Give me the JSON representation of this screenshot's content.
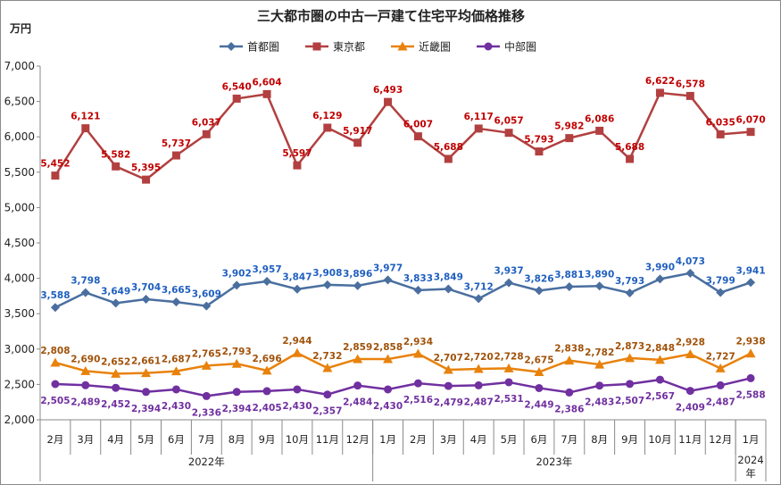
{
  "chart_data": {
    "type": "line",
    "title": "三大都市圏の中古一戸建て住宅平均価格推移",
    "yunit": "万円",
    "ylim": [
      2000,
      7000
    ],
    "ystep": 500,
    "yticks": [
      "2,000",
      "2,500",
      "3,000",
      "3,500",
      "4,000",
      "4,500",
      "5,000",
      "5,500",
      "6,000",
      "6,500",
      "7,000"
    ],
    "categories": [
      "2月",
      "3月",
      "4月",
      "5月",
      "6月",
      "7月",
      "8月",
      "9月",
      "10月",
      "11月",
      "12月",
      "1月",
      "2月",
      "3月",
      "4月",
      "5月",
      "6月",
      "7月",
      "8月",
      "9月",
      "10月",
      "11月",
      "12月",
      "1月"
    ],
    "years": [
      {
        "label": "2022年",
        "from": 0,
        "to": 10
      },
      {
        "label": "2023年",
        "from": 11,
        "to": 22
      },
      {
        "label": "2024年",
        "from": 23,
        "to": 23
      }
    ],
    "legend_position": "top",
    "grid": false,
    "series": [
      {
        "name": "首都圏",
        "color": "#4a6f9f",
        "label_color": "#1f5fbf",
        "marker": "diamond",
        "values": [
          3588,
          3798,
          3649,
          3704,
          3665,
          3609,
          3902,
          3957,
          3847,
          3908,
          3896,
          3977,
          3833,
          3849,
          3712,
          3937,
          3826,
          3881,
          3890,
          3793,
          3990,
          4073,
          3799,
          3941
        ],
        "labels": [
          "3,588",
          "3,798",
          "3,649",
          "3,704",
          "3,665",
          "3,609",
          "3,902",
          "3,957",
          "3,847",
          "3,908",
          "3,896",
          "3,977",
          "3,833",
          "3,849",
          "3,712",
          "3,937",
          "3,826",
          "3,881",
          "3,890",
          "3,793",
          "3,990",
          "4,073",
          "3,799",
          "3,941"
        ]
      },
      {
        "name": "東京都",
        "color": "#b24040",
        "label_color": "#c00000",
        "marker": "square",
        "values": [
          5452,
          6121,
          5582,
          5395,
          5737,
          6037,
          6540,
          6604,
          5597,
          6129,
          5917,
          6493,
          6007,
          5688,
          6117,
          6057,
          5793,
          5982,
          6086,
          5688,
          6622,
          6578,
          6035,
          6070
        ],
        "labels": [
          "5,452",
          "6,121",
          "5,582",
          "5,395",
          "5,737",
          "6,037",
          "6,540",
          "6,604",
          "5,597",
          "6,129",
          "5,917",
          "6,493",
          "6,007",
          "5,688",
          "6,117",
          "6,057",
          "5,793",
          "5,982",
          "6,086",
          "5,688",
          "6,622",
          "6,578",
          "6,035",
          "6,070"
        ]
      },
      {
        "name": "近畿圏",
        "color": "#e8820c",
        "label_color": "#a0520a",
        "marker": "triangle",
        "values": [
          2808,
          2690,
          2652,
          2661,
          2687,
          2765,
          2793,
          2696,
          2944,
          2732,
          2859,
          2858,
          2934,
          2707,
          2720,
          2728,
          2675,
          2838,
          2782,
          2873,
          2848,
          2928,
          2727,
          2938
        ],
        "labels": [
          "2,808",
          "2,690",
          "2,652",
          "2,661",
          "2,687",
          "2,765",
          "2,793",
          "2,696",
          "2,944",
          "2,732",
          "2,859",
          "2,858",
          "2,934",
          "2,707",
          "2,720",
          "2,728",
          "2,675",
          "2,838",
          "2,782",
          "2,873",
          "2,848",
          "2,928",
          "2,727",
          "2,938"
        ]
      },
      {
        "name": "中部圏",
        "color": "#7030a0",
        "label_color": "#7030a0",
        "marker": "circle",
        "values": [
          2505,
          2489,
          2452,
          2394,
          2430,
          2336,
          2394,
          2405,
          2430,
          2357,
          2484,
          2430,
          2516,
          2479,
          2487,
          2531,
          2449,
          2386,
          2483,
          2507,
          2567,
          2409,
          2487,
          2588
        ],
        "labels": [
          "2,505",
          "2,489",
          "2,452",
          "2,394",
          "2,430",
          "2,336",
          "2,394",
          "2,405",
          "2,430",
          "2,357",
          "2,484",
          "2,430",
          "2,516",
          "2,479",
          "2,487",
          "2,531",
          "2,449",
          "2,386",
          "2,483",
          "2,507",
          "2,567",
          "2,409",
          "2,487",
          "2,588"
        ]
      }
    ]
  }
}
